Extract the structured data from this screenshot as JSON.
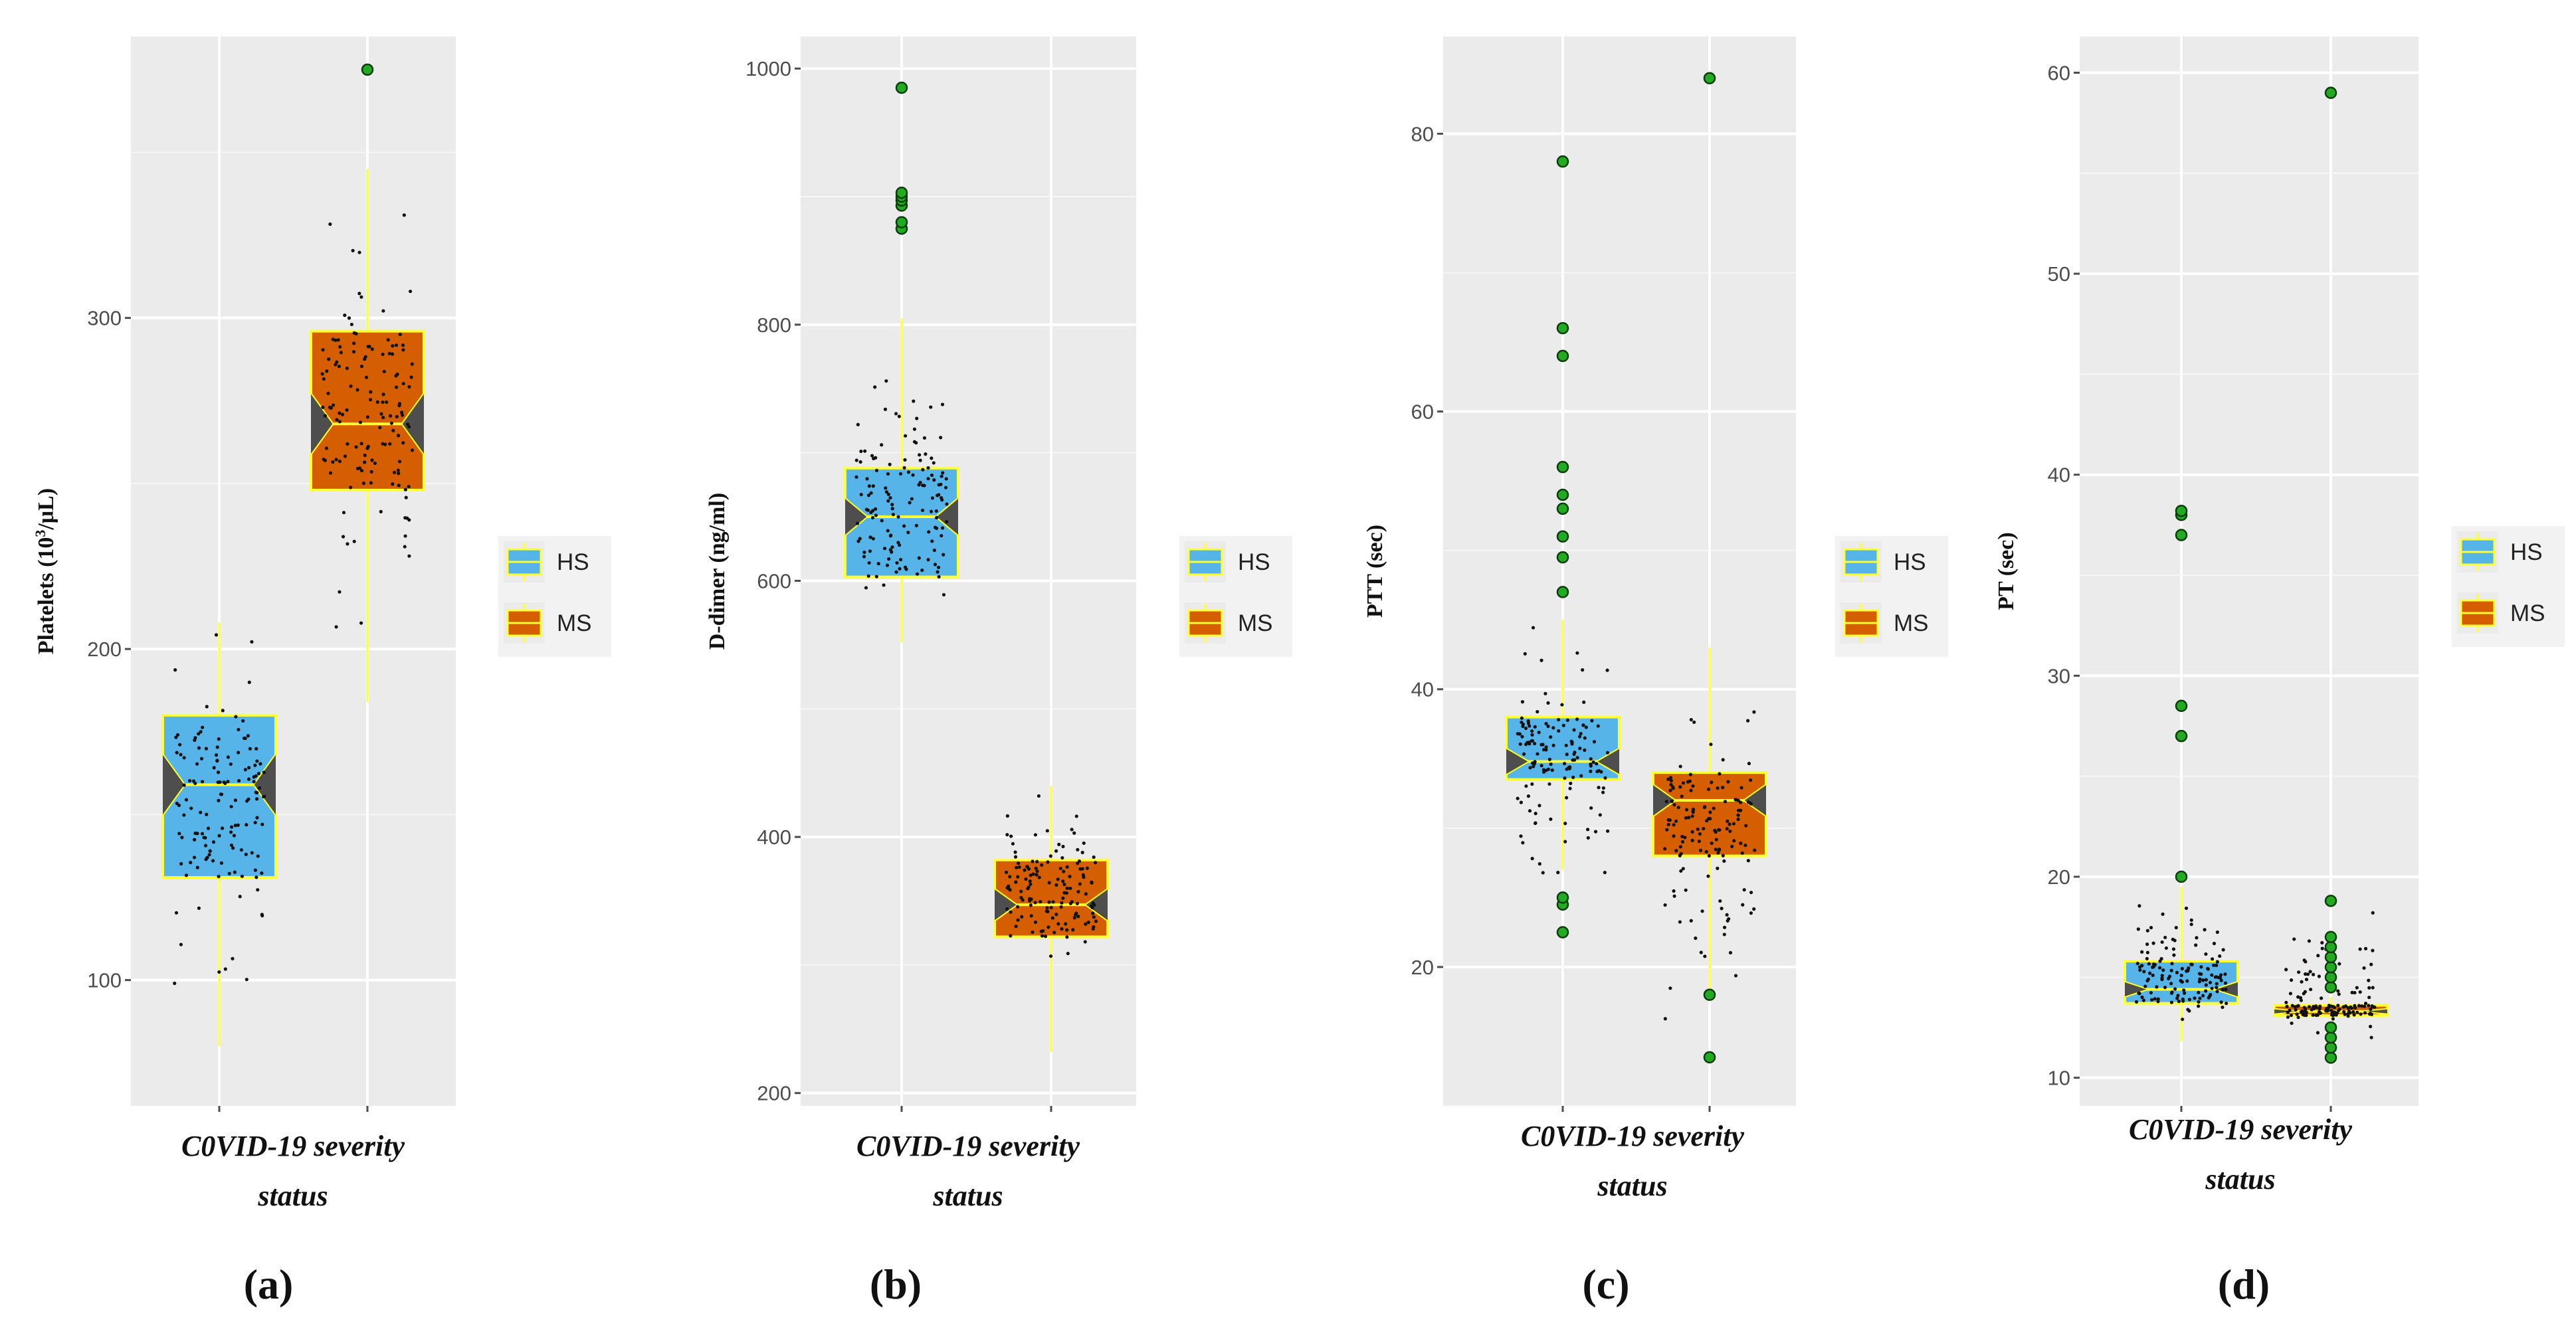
{
  "chart_data": [
    {
      "type": "boxplot",
      "panel_label": "(a)",
      "ylabel_main": "Platelets (10",
      "ylabel_sup": "3",
      "ylabel_rest": "/μL)",
      "xlabel_line1": "C0VID-19 severity",
      "xlabel_line2": "status",
      "ylim": [
        62,
        385
      ],
      "yticks": [
        100,
        200,
        300
      ],
      "ytick_labels": [
        "100",
        "200",
        "300"
      ],
      "categories": [
        "HS",
        "MS"
      ],
      "boxes": [
        {
          "name": "HS",
          "whisker_low": 80,
          "q1": 131,
          "median": 159,
          "q3": 180,
          "whisker_high": 208,
          "notch": 9,
          "fill": "#56b4e9",
          "jitter_min": 80,
          "jitter_max": 220,
          "outliers": []
        },
        {
          "name": "MS",
          "whisker_low": 184,
          "q1": 248,
          "median": 268,
          "q3": 296,
          "whisker_high": 345,
          "notch": 9,
          "fill": "#d55e00",
          "jitter_min": 200,
          "jitter_max": 345,
          "outliers": [
            375
          ]
        }
      ],
      "legend": [
        "HS",
        "MS"
      ]
    },
    {
      "type": "boxplot",
      "panel_label": "(b)",
      "ylabel_main": "D-dimer (ng/ml)",
      "ylabel_sup": "",
      "ylabel_rest": "",
      "xlabel_line1": "C0VID-19 severity",
      "xlabel_line2": "status",
      "ylim": [
        190,
        1025
      ],
      "yticks": [
        200,
        400,
        600,
        800,
        1000
      ],
      "ytick_labels": [
        "200",
        "400",
        "600",
        "800",
        "1000"
      ],
      "categories": [
        "HS",
        "MS"
      ],
      "boxes": [
        {
          "name": "HS",
          "whisker_low": 552,
          "q1": 603,
          "median": 650,
          "q3": 688,
          "whisker_high": 805,
          "notch": 14,
          "fill": "#56b4e9",
          "jitter_min": 548,
          "jitter_max": 800,
          "outliers": [
            875,
            880,
            893,
            897,
            900,
            903,
            985
          ]
        },
        {
          "name": "MS",
          "whisker_low": 232,
          "q1": 322,
          "median": 347,
          "q3": 382,
          "whisker_high": 440,
          "notch": 12,
          "fill": "#d55e00",
          "jitter_min": 260,
          "jitter_max": 455,
          "outliers": []
        }
      ],
      "legend": [
        "HS",
        "MS"
      ]
    },
    {
      "type": "boxplot",
      "panel_label": "(c)",
      "ylabel_main": "PTT (sec)",
      "ylabel_sup": "",
      "ylabel_rest": "",
      "xlabel_line1": "C0VID-19 severity",
      "xlabel_line2": "status",
      "ylim": [
        10,
        87
      ],
      "yticks": [
        20,
        40,
        60,
        80
      ],
      "ytick_labels": [
        "20",
        "40",
        "60",
        "80"
      ],
      "categories": [
        "HS",
        "MS"
      ],
      "boxes": [
        {
          "name": "HS",
          "whisker_low": 27,
          "q1": 33.5,
          "median": 34.8,
          "q3": 38,
          "whisker_high": 45,
          "notch": 0.9,
          "fill": "#56b4e9",
          "jitter_min": 22,
          "jitter_max": 46,
          "outliers": [
            22.5,
            24.5,
            25,
            47,
            49.5,
            51,
            53,
            54,
            56,
            64,
            66,
            78
          ]
        },
        {
          "name": "MS",
          "whisker_low": 18,
          "q1": 28,
          "median": 32,
          "q3": 34,
          "whisker_high": 43,
          "notch": 1.1,
          "fill": "#d55e00",
          "jitter_min": 14,
          "jitter_max": 43,
          "outliers": [
            13.5,
            18,
            84
          ]
        }
      ],
      "legend": [
        "HS",
        "MS"
      ]
    },
    {
      "type": "boxplot",
      "panel_label": "(d)",
      "ylabel_main": "PT (sec)",
      "ylabel_sup": "",
      "ylabel_rest": "",
      "xlabel_line1": "C0VID-19 severity",
      "xlabel_line2": "status",
      "ylim": [
        8.6,
        61.8
      ],
      "yticks": [
        10,
        20,
        30,
        40,
        50,
        60
      ],
      "ytick_labels": [
        "10",
        "20",
        "30",
        "40",
        "50",
        "60"
      ],
      "categories": [
        "HS",
        "MS"
      ],
      "boxes": [
        {
          "name": "HS",
          "whisker_low": 11.8,
          "q1": 13.7,
          "median": 14.4,
          "q3": 15.8,
          "whisker_high": 19.5,
          "notch": 0.35,
          "fill": "#56b4e9",
          "jitter_min": 11.5,
          "jitter_max": 20,
          "outliers": [
            20,
            27,
            28.5,
            37,
            38,
            38.2
          ]
        },
        {
          "name": "MS",
          "whisker_low": 12.9,
          "q1": 13.1,
          "median": 13.3,
          "q3": 13.6,
          "whisker_high": 14,
          "notch": 0.1,
          "fill": "#d55e00",
          "jitter_min": 11,
          "jitter_max": 18.5,
          "outliers": [
            11,
            11.5,
            12,
            12.5,
            14.5,
            15,
            15.5,
            16,
            16.5,
            17,
            18.8,
            59
          ]
        }
      ],
      "legend": [
        "HS",
        "MS"
      ]
    }
  ]
}
